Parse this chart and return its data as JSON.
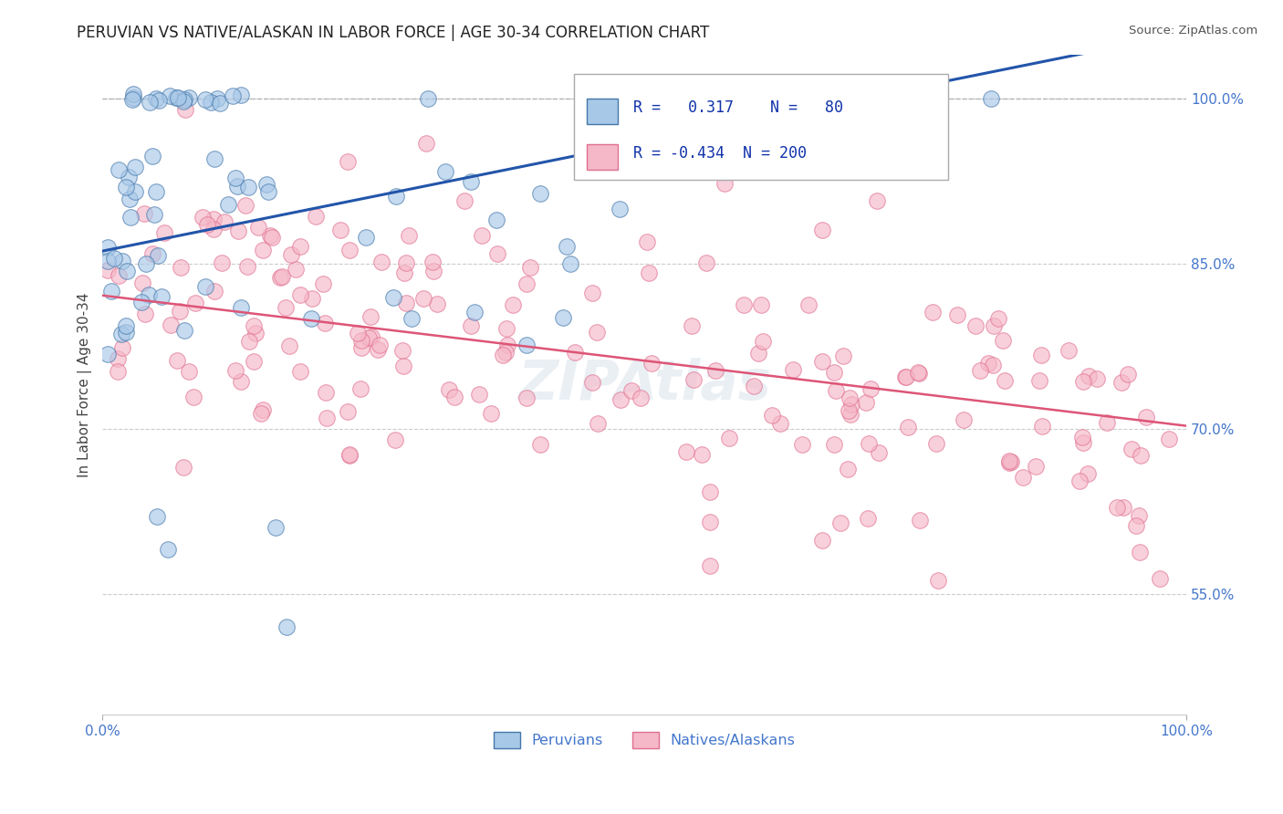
{
  "title": "PERUVIAN VS NATIVE/ALASKAN IN LABOR FORCE | AGE 30-34 CORRELATION CHART",
  "source": "Source: ZipAtlas.com",
  "ylabel": "In Labor Force | Age 30-34",
  "y_tick_labels": [
    "55.0%",
    "70.0%",
    "85.0%",
    "100.0%"
  ],
  "y_tick_values": [
    0.55,
    0.7,
    0.85,
    1.0
  ],
  "x_min": 0.0,
  "x_max": 1.0,
  "y_min": 0.44,
  "y_max": 1.04,
  "blue_R": 0.317,
  "blue_N": 80,
  "pink_R": -0.434,
  "pink_N": 200,
  "blue_face_color": "#A8C8E8",
  "blue_edge_color": "#4477AA",
  "pink_face_color": "#F5B8C8",
  "pink_edge_color": "#E07090",
  "blue_line_color": "#2255AA",
  "pink_line_color": "#DD5577",
  "legend_blue_label": "Peruvians",
  "legend_pink_label": "Natives/Alaskans",
  "background_color": "#FFFFFF",
  "grid_color": "#CCCCCC",
  "ytick_color": "#4477CC",
  "xtick_color": "#4477CC",
  "watermark_color": "#BBCCDD",
  "watermark_alpha": 0.3,
  "dot_size": 160,
  "dot_alpha": 0.65,
  "dot_linewidth": 0.8
}
